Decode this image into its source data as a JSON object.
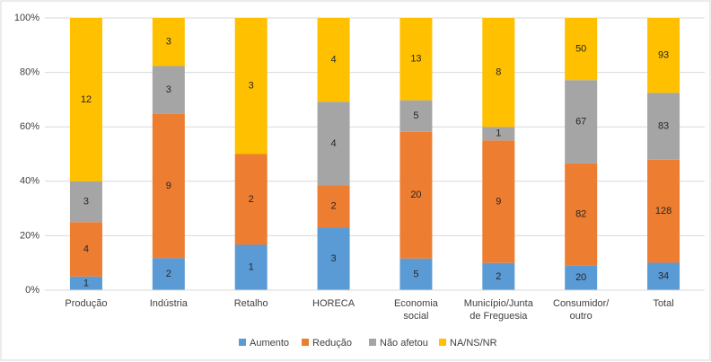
{
  "chart_data": {
    "type": "bar",
    "stack": "percent",
    "categories": [
      "Produção",
      "Indústria",
      "Retalho",
      "HORECA",
      "Economia\nsocial",
      "Município/Junta\nde Freguesia",
      "Consumidor/\noutro",
      "Total"
    ],
    "series": [
      {
        "name": "Aumento",
        "color": "#5b9bd5",
        "values": [
          1,
          2,
          1,
          3,
          5,
          2,
          20,
          34
        ]
      },
      {
        "name": "Redução",
        "color": "#ed7d31",
        "values": [
          4,
          9,
          2,
          2,
          20,
          9,
          82,
          128
        ]
      },
      {
        "name": "Não afetou",
        "color": "#a5a5a5",
        "values": [
          3,
          3,
          null,
          4,
          5,
          1,
          67,
          83
        ]
      },
      {
        "name": "NA/NS/NR",
        "color": "#ffc000",
        "values": [
          12,
          3,
          3,
          4,
          13,
          8,
          50,
          93
        ]
      }
    ],
    "ylim": [
      0,
      100
    ],
    "yticks": [
      {
        "value": 0,
        "label": "0%"
      },
      {
        "value": 20,
        "label": "20%"
      },
      {
        "value": 40,
        "label": "40%"
      },
      {
        "value": 60,
        "label": "60%"
      },
      {
        "value": 80,
        "label": "80%"
      },
      {
        "value": 100,
        "label": "100%"
      }
    ],
    "grid": true,
    "legend": "bottom"
  }
}
